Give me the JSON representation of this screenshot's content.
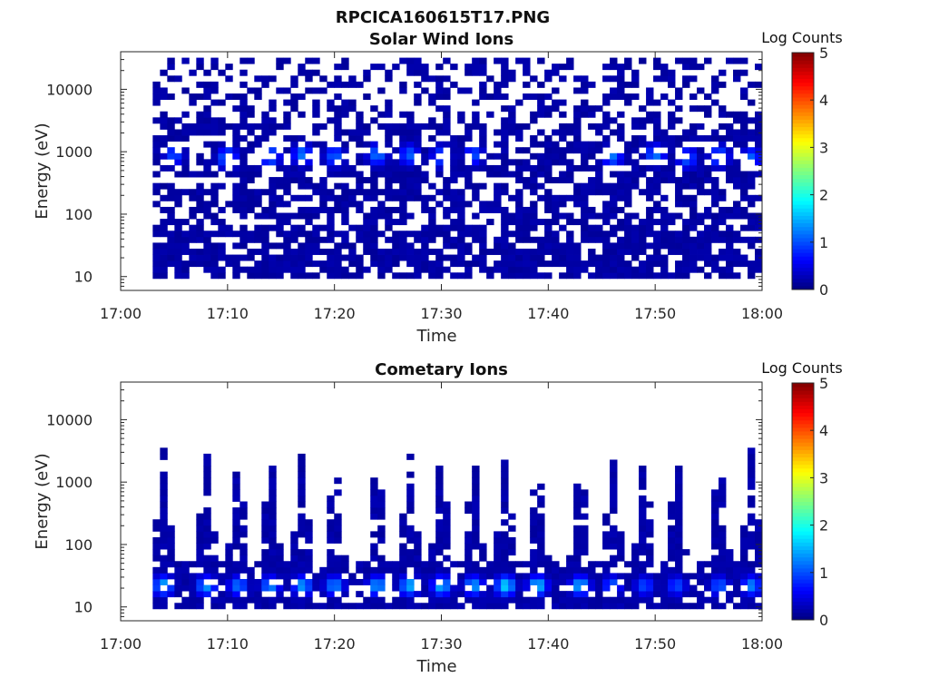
{
  "figure": {
    "title": "RPCICA160615T17.PNG",
    "colormap": "jet",
    "background": "#ffffff",
    "axes_color": "#262626"
  },
  "chart_data": [
    {
      "type": "heatmap",
      "title": "Solar Wind Ions",
      "xlabel": "Time",
      "ylabel": "Energy (eV)",
      "xlim": [
        "17:00",
        "18:00"
      ],
      "ylim": [
        6,
        40000
      ],
      "yscale": "log",
      "xticks": [
        "17:00",
        "17:10",
        "17:20",
        "17:30",
        "17:40",
        "17:50",
        "18:00"
      ],
      "yticks": [
        10,
        100,
        1000,
        10000
      ],
      "ytick_labels": [
        "10",
        "100",
        "1000",
        "10000"
      ],
      "data_start": "17:03",
      "data_end": "18:00",
      "energy_min_eV": 9,
      "energy_max_eV": 35000,
      "energy_gap_eV": 200,
      "notes": "sparse background counts (log counts ~0.2) across all energies; solar wind beam near 700-1000 eV with peaks ~1.0-1.3 log counts",
      "peaks": [
        {
          "time": "17:05",
          "energy_eV": 900,
          "log_counts": 1.0
        },
        {
          "time": "17:10",
          "energy_eV": 800,
          "log_counts": 1.3
        },
        {
          "time": "17:14",
          "energy_eV": 850,
          "log_counts": 1.2
        },
        {
          "time": "17:17",
          "energy_eV": 900,
          "log_counts": 1.2
        },
        {
          "time": "17:20",
          "energy_eV": 850,
          "log_counts": 1.1
        },
        {
          "time": "17:24",
          "energy_eV": 900,
          "log_counts": 1.2
        },
        {
          "time": "17:27",
          "energy_eV": 900,
          "log_counts": 1.1
        },
        {
          "time": "17:30",
          "energy_eV": 850,
          "log_counts": 1.1
        },
        {
          "time": "17:33",
          "energy_eV": 900,
          "log_counts": 1.0
        },
        {
          "time": "17:46",
          "energy_eV": 850,
          "log_counts": 1.2
        },
        {
          "time": "17:50",
          "energy_eV": 900,
          "log_counts": 1.2
        },
        {
          "time": "17:53",
          "energy_eV": 800,
          "log_counts": 1.1
        },
        {
          "time": "17:56",
          "energy_eV": 850,
          "log_counts": 1.2
        },
        {
          "time": "17:59",
          "energy_eV": 800,
          "log_counts": 1.1
        }
      ],
      "colorbar": {
        "label": "Log Counts",
        "min": 0,
        "max": 5,
        "ticks": [
          0,
          1,
          2,
          3,
          4,
          5
        ]
      }
    },
    {
      "type": "heatmap",
      "title": "Cometary Ions",
      "xlabel": "Time",
      "ylabel": "Energy (eV)",
      "xlim": [
        "17:00",
        "18:00"
      ],
      "ylim": [
        6,
        40000
      ],
      "yscale": "log",
      "xticks": [
        "17:00",
        "17:10",
        "17:20",
        "17:30",
        "17:40",
        "17:50",
        "18:00"
      ],
      "yticks": [
        10,
        100,
        1000,
        10000
      ],
      "ytick_labels": [
        "10",
        "100",
        "1000",
        "10000"
      ],
      "data_start": "17:03",
      "data_end": "18:00",
      "base_energy_eV": 20,
      "notes": "periodic spikes every ~3.2 min reaching ~1000-2500 eV; strongest counts near 20-30 eV (~1.3-1.8 log counts)",
      "peaks": [
        {
          "time": "17:04",
          "energy_eV": 22,
          "log_counts": 1.5
        },
        {
          "time": "17:08",
          "energy_eV": 22,
          "log_counts": 1.4
        },
        {
          "time": "17:11",
          "energy_eV": 22,
          "log_counts": 1.2
        },
        {
          "time": "17:14",
          "energy_eV": 22,
          "log_counts": 1.3
        },
        {
          "time": "17:17",
          "energy_eV": 22,
          "log_counts": 1.4
        },
        {
          "time": "17:20",
          "energy_eV": 22,
          "log_counts": 1.3
        },
        {
          "time": "17:24",
          "energy_eV": 22,
          "log_counts": 1.4
        },
        {
          "time": "17:27",
          "energy_eV": 22,
          "log_counts": 1.5
        },
        {
          "time": "17:30",
          "energy_eV": 22,
          "log_counts": 1.5
        },
        {
          "time": "17:33",
          "energy_eV": 22,
          "log_counts": 1.4
        },
        {
          "time": "17:36",
          "energy_eV": 22,
          "log_counts": 1.7
        },
        {
          "time": "17:39",
          "energy_eV": 22,
          "log_counts": 1.6
        },
        {
          "time": "17:43",
          "energy_eV": 22,
          "log_counts": 1.5
        },
        {
          "time": "17:46",
          "energy_eV": 22,
          "log_counts": 1.1
        },
        {
          "time": "17:49",
          "energy_eV": 22,
          "log_counts": 1.0
        },
        {
          "time": "17:52",
          "energy_eV": 22,
          "log_counts": 1.0
        },
        {
          "time": "17:56",
          "energy_eV": 22,
          "log_counts": 1.1
        },
        {
          "time": "17:59",
          "energy_eV": 22,
          "log_counts": 1.3
        }
      ],
      "colorbar": {
        "label": "Log Counts",
        "min": 0,
        "max": 5,
        "ticks": [
          0,
          1,
          2,
          3,
          4,
          5
        ]
      }
    }
  ]
}
